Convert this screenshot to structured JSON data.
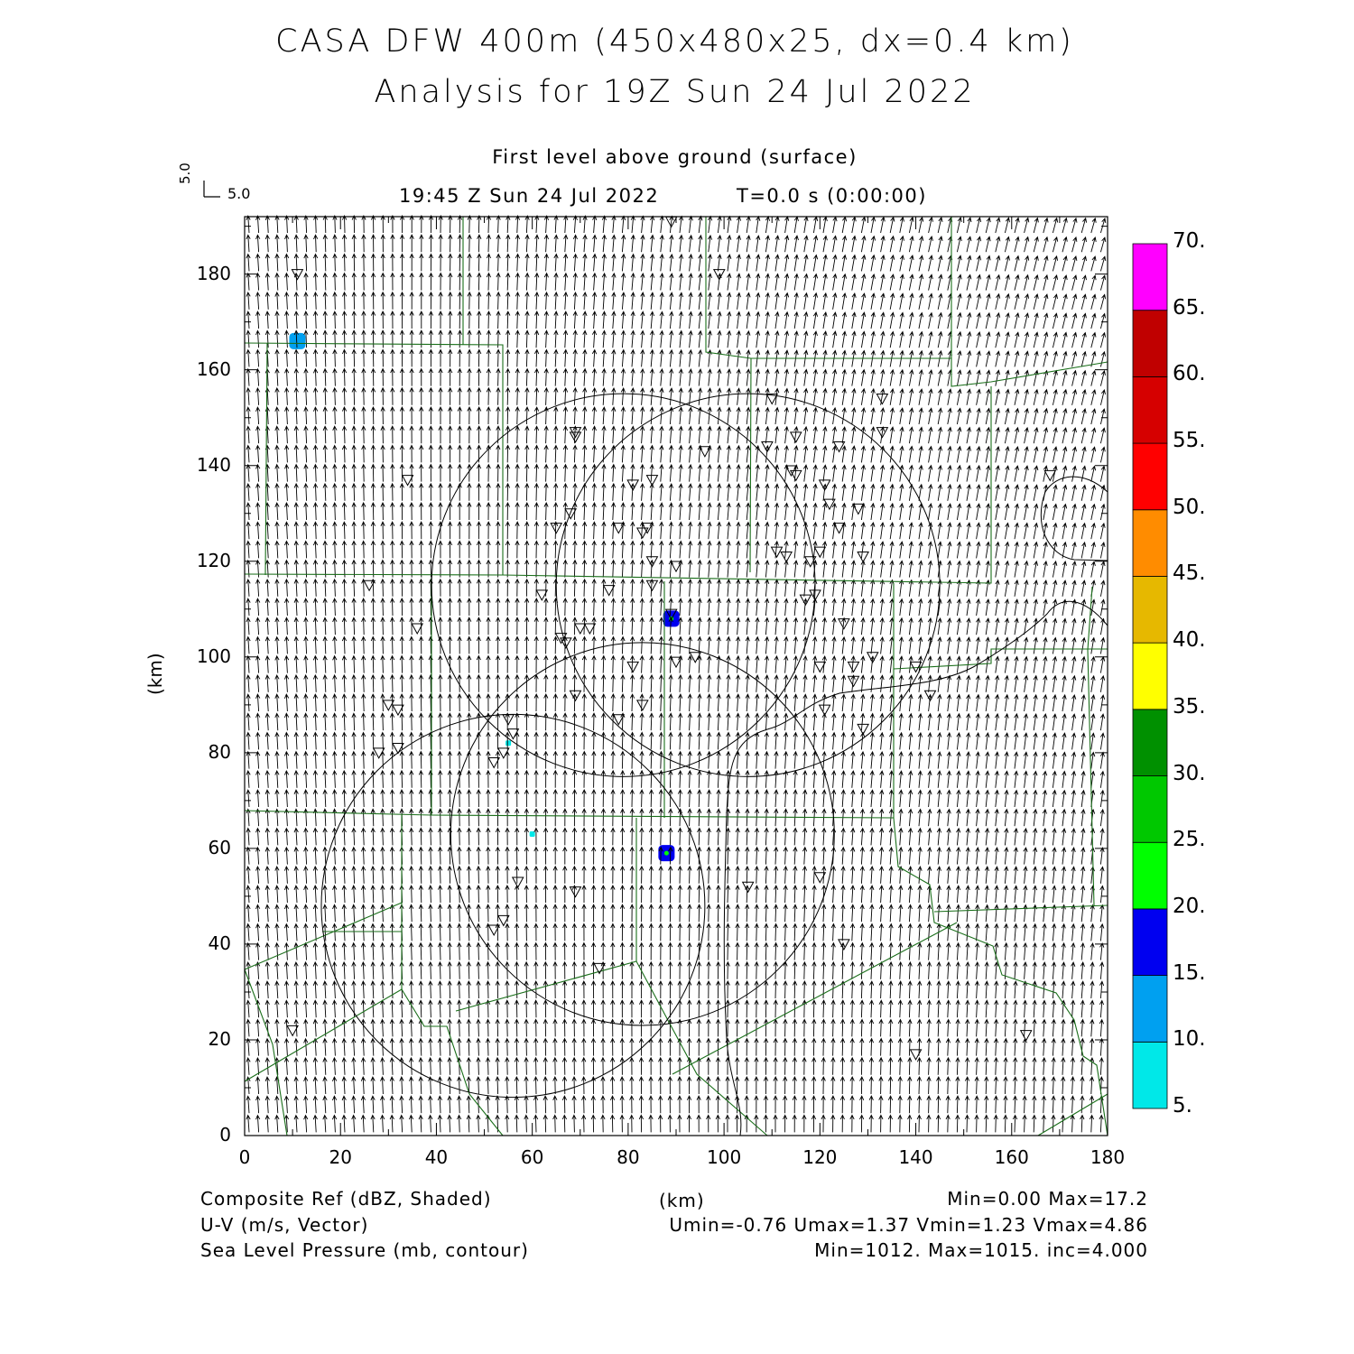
{
  "header": {
    "title_line1": "CASA DFW 400m (450x480x25, dx=0.4 km)",
    "title_line2": "Analysis for 19Z Sun 24 Jul 2022",
    "level": "First level above ground (surface)",
    "valid_time": "19:45 Z Sun 24 Jul 2022",
    "forecast_time": "T=0.0 s (0:00:00)",
    "vector_scale_v": "5.0",
    "vector_scale_u": "5.0"
  },
  "axes": {
    "x_label": "(km)",
    "y_label": "(km)",
    "x_ticks": [
      "0",
      "20",
      "40",
      "60",
      "80",
      "100",
      "120",
      "140",
      "160",
      "180"
    ],
    "y_ticks": [
      "0",
      "20",
      "40",
      "60",
      "80",
      "100",
      "120",
      "140",
      "160",
      "180"
    ],
    "x_range": [
      0,
      180
    ],
    "y_range": [
      0,
      192
    ]
  },
  "colorbar": {
    "labels": [
      "5.",
      "10.",
      "15.",
      "20.",
      "25.",
      "30.",
      "35.",
      "40.",
      "45.",
      "50.",
      "55.",
      "60.",
      "65.",
      "70."
    ],
    "colors": [
      "#00e8e8",
      "#00a0f0",
      "#0000f0",
      "#00ff00",
      "#00c800",
      "#009000",
      "#ffff00",
      "#e6b800",
      "#ff8c00",
      "#ff0000",
      "#d60000",
      "#c00000",
      "#ff00ff"
    ]
  },
  "footer": {
    "field1_name": "Composite Ref (dBZ, Shaded)",
    "field1_stats": "Min=0.00 Max=17.2",
    "field2_name": "U-V (m/s, Vector)",
    "field2_stats": "Umin=-0.76 Umax=1.37 Vmin=1.23 Vmax=4.86",
    "field3_name": "Sea Level Pressure (mb, contour)",
    "field3_stats": "Min=1012. Max=1015. inc=4.000",
    "x_unit": "(km)"
  },
  "map_data": {
    "radar_rings": [
      {
        "center": [
          79,
          115
        ],
        "radius_km": 40
      },
      {
        "center": [
          83,
          63
        ],
        "radius_km": 40
      },
      {
        "center": [
          105,
          115
        ],
        "radius_km": 40
      },
      {
        "center": [
          56,
          48
        ],
        "radius_km": 40
      }
    ],
    "reflectivity_echoes": [
      {
        "x": 11,
        "y": 166,
        "dbz": 10
      },
      {
        "x": 89,
        "y": 108,
        "dbz": 15
      },
      {
        "x": 88,
        "y": 59,
        "dbz": 15
      },
      {
        "x": 60,
        "y": 63,
        "dbz": 5
      },
      {
        "x": 55,
        "y": 82,
        "dbz": 5
      }
    ],
    "stations": [
      [
        11,
        180
      ],
      [
        89,
        191
      ],
      [
        99,
        180
      ],
      [
        34,
        137
      ],
      [
        69,
        147
      ],
      [
        69,
        146
      ],
      [
        96,
        143
      ],
      [
        110,
        154
      ],
      [
        115,
        146
      ],
      [
        124,
        144
      ],
      [
        133,
        154
      ],
      [
        133,
        147
      ],
      [
        109,
        144
      ],
      [
        114,
        139
      ],
      [
        115,
        138
      ],
      [
        121,
        136
      ],
      [
        122,
        132
      ],
      [
        128,
        131
      ],
      [
        168,
        138
      ],
      [
        81,
        136
      ],
      [
        85,
        137
      ],
      [
        68,
        130
      ],
      [
        65,
        127
      ],
      [
        78,
        127
      ],
      [
        83,
        126
      ],
      [
        84,
        127
      ],
      [
        111,
        122
      ],
      [
        113,
        121
      ],
      [
        118,
        120
      ],
      [
        120,
        122
      ],
      [
        124,
        127
      ],
      [
        129,
        121
      ],
      [
        85,
        120
      ],
      [
        90,
        119
      ],
      [
        26,
        115
      ],
      [
        62,
        113
      ],
      [
        76,
        114
      ],
      [
        85,
        115
      ],
      [
        117,
        112
      ],
      [
        119,
        113
      ],
      [
        125,
        107
      ],
      [
        36,
        106
      ],
      [
        66,
        104
      ],
      [
        70,
        106
      ],
      [
        72,
        106
      ],
      [
        67,
        103
      ],
      [
        89,
        109
      ],
      [
        81,
        98
      ],
      [
        90,
        99
      ],
      [
        94,
        100
      ],
      [
        120,
        98
      ],
      [
        127,
        98
      ],
      [
        131,
        100
      ],
      [
        127,
        95
      ],
      [
        140,
        98
      ],
      [
        143,
        92
      ],
      [
        30,
        90
      ],
      [
        32,
        89
      ],
      [
        69,
        92
      ],
      [
        78,
        87
      ],
      [
        83,
        90
      ],
      [
        121,
        89
      ],
      [
        129,
        85
      ],
      [
        28,
        80
      ],
      [
        32,
        81
      ],
      [
        55,
        87
      ],
      [
        56,
        84
      ],
      [
        54,
        80
      ],
      [
        52,
        78
      ],
      [
        57,
        53
      ],
      [
        69,
        51
      ],
      [
        105,
        52
      ],
      [
        120,
        54
      ],
      [
        52,
        43
      ],
      [
        54,
        45
      ],
      [
        74,
        35
      ],
      [
        125,
        40
      ],
      [
        10,
        22
      ],
      [
        140,
        17
      ],
      [
        163,
        21
      ]
    ],
    "pressure_contour_note": "1012"
  }
}
